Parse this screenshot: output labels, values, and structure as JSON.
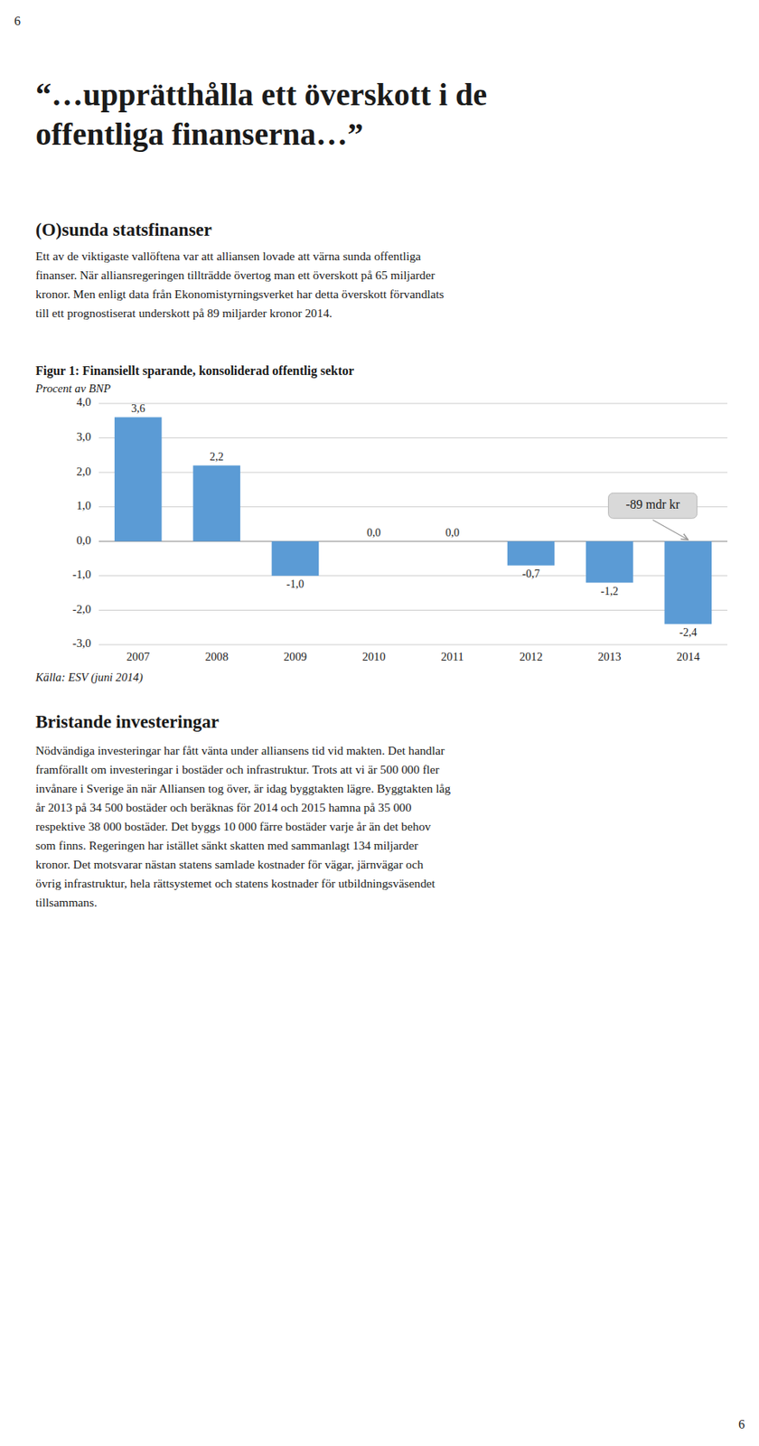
{
  "page_number": "6",
  "title_quote": "“…upprätthålla ett överskott i de\noffentliga finanserna…”",
  "section_title": "(O)sunda statsfinanser",
  "body_text1_lines": [
    "Ett av de viktigaste vallöftena var att alliansen lovade att värna sunda offentliga",
    "finanser. När alliansregeringen tillträdde övertog man ett överskott på 65 miljarder",
    "kronor. Men enligt data från Ekonomistyrningsverket har detta överskott förvandlats",
    "till ett prognostiserat underskott på 89 miljarder kronor 2014."
  ],
  "chart_data": {
    "type": "bar",
    "title": "Figur 1: Finansiellt sparande, konsoliderad offentlig sektor",
    "y_label": "Procent av BNP",
    "categories": [
      "2007",
      "2008",
      "2009",
      "2010",
      "2011",
      "2012",
      "2013",
      "2014"
    ],
    "values": [
      3.6,
      2.2,
      -1.0,
      0.0,
      0.0,
      -0.7,
      -1.2,
      -2.4
    ],
    "value_labels": [
      "3,6",
      "2,2",
      "-1,0",
      "0,0",
      "0,0",
      "-0,7",
      "-1,2",
      "-2,4"
    ],
    "data_labels": true,
    "color": "#5b9bd5",
    "ylim": [
      -3.0,
      4.0
    ],
    "yticks": [
      {
        "value": -3.0,
        "label": "-3,0"
      },
      {
        "value": -2.0,
        "label": "-2,0"
      },
      {
        "value": -1.0,
        "label": "-1,0"
      },
      {
        "value": 0.0,
        "label": "0,0"
      },
      {
        "value": 1.0,
        "label": "1,0"
      },
      {
        "value": 2.0,
        "label": "2,0"
      },
      {
        "value": 3.0,
        "label": "3,0"
      },
      {
        "value": 4.0,
        "label": "4,0"
      }
    ],
    "grid": true,
    "annotations": [
      {
        "text": "-89 mdr kr",
        "category": "2014"
      }
    ],
    "source": "Källa: ESV (juni 2014)"
  },
  "section2_title": "Bristande investeringar",
  "body_text2_lines": [
    "Nödvändiga investeringar har fått vänta under alliansens tid vid makten. Det handlar",
    "framförallt om investeringar i bostäder och infrastruktur. Trots att vi är 500 000 fler",
    "invånare i Sverige än när Alliansen tog över, är idag byggtakten lägre. Byggtakten låg",
    "år 2013 på 34 500 bostäder och beräknas för 2014 och 2015 hamna på 35 000",
    "respektive 38 000 bostäder. Det byggs 10 000 färre bostäder varje år än det behov",
    "som finns. Regeringen har istället sänkt skatten med sammanlagt 134 miljarder",
    "kronor. Det motsvarar nästan statens samlade kostnader för vägar, järnvägar och",
    "övrig infrastruktur, hela rättsystemet och statens kostnader för utbildningsväsendet",
    "tillsammans."
  ]
}
